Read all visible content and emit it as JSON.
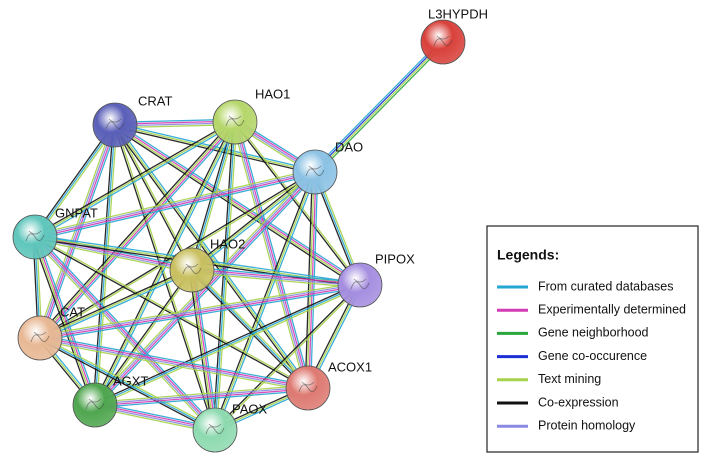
{
  "nodes": [
    {
      "label": "L3HYPDH"
    },
    {
      "label": "CRAT"
    },
    {
      "label": "HAO1"
    },
    {
      "label": "DAO"
    },
    {
      "label": "GNPAT"
    },
    {
      "label": "HAO2"
    },
    {
      "label": "PIPOX"
    },
    {
      "label": "CAT"
    },
    {
      "label": "ACOX1"
    },
    {
      "label": "AGXT"
    },
    {
      "label": "PAOX"
    }
  ],
  "legend": {
    "title": "Legends:",
    "items": [
      {
        "label": "From curated databases",
        "color": "#26a6d2"
      },
      {
        "label": "Experimentally determined",
        "color": "#d33cb4"
      },
      {
        "label": "Gene neighborhood",
        "color": "#2aa63c"
      },
      {
        "label": "Gene co-occurence",
        "color": "#1c2fd6"
      },
      {
        "label": "Text mining",
        "color": "#a6d24a"
      },
      {
        "label": "Co-expression",
        "color": "#111111"
      },
      {
        "label": "Protein homology",
        "color": "#8a88e0"
      }
    ]
  }
}
